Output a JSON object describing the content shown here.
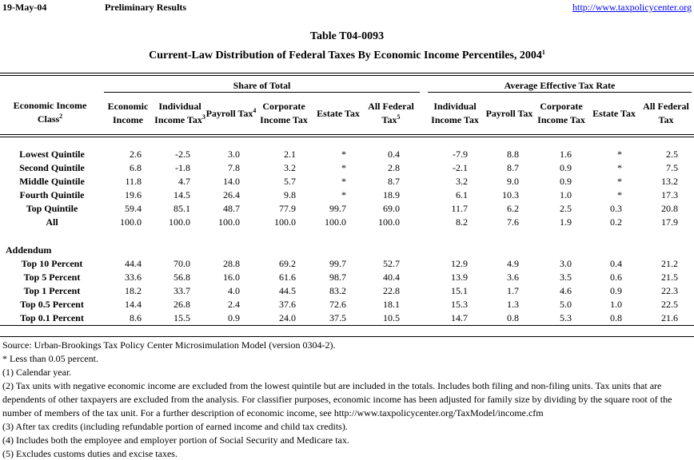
{
  "header": {
    "date": "19-May-04",
    "status": "Preliminary Results",
    "link": "http://www.taxpolicycenter.org"
  },
  "title": {
    "table_id": "Table T04-0093",
    "subtitle": "Current-Law Distribution of Federal Taxes By Economic Income Percentiles, 2004",
    "subtitle_note": "1"
  },
  "table": {
    "stub_header": {
      "text": "Economic Income Class",
      "note": "2"
    },
    "groups": [
      {
        "label": "Share of Total",
        "columns": [
          {
            "text": "Economic Income"
          },
          {
            "text": "Individual Income Tax",
            "note": "3"
          },
          {
            "text": "Payroll Tax",
            "note": "4"
          },
          {
            "text": "Corporate Income Tax"
          },
          {
            "text": "Estate Tax"
          },
          {
            "text": "All Federal Tax",
            "note": "5"
          }
        ]
      },
      {
        "label": "Average Effective Tax Rate",
        "columns": [
          {
            "text": "Individual Income Tax"
          },
          {
            "text": "Payroll Tax"
          },
          {
            "text": "Corporate Income Tax"
          },
          {
            "text": "Estate Tax"
          },
          {
            "text": "All Federal Tax"
          }
        ]
      }
    ],
    "sections": [
      {
        "rows": [
          {
            "label": "Lowest Quintile",
            "values": [
              "2.6",
              "-2.5",
              "3.0",
              "2.1",
              "*",
              "0.4",
              "-7.9",
              "8.8",
              "1.6",
              "*",
              "2.5"
            ]
          },
          {
            "label": "Second Quintile",
            "values": [
              "6.8",
              "-1.8",
              "7.8",
              "3.2",
              "*",
              "2.8",
              "-2.1",
              "8.7",
              "0.9",
              "*",
              "7.5"
            ]
          },
          {
            "label": "Middle Quintile",
            "values": [
              "11.8",
              "4.7",
              "14.0",
              "5.7",
              "*",
              "8.7",
              "3.2",
              "9.0",
              "0.9",
              "*",
              "13.2"
            ]
          },
          {
            "label": "Fourth Quintile",
            "values": [
              "19.6",
              "14.5",
              "26.4",
              "9.8",
              "*",
              "18.9",
              "6.1",
              "10.3",
              "1.0",
              "*",
              "17.3"
            ]
          },
          {
            "label": "Top Quintile",
            "values": [
              "59.4",
              "85.1",
              "48.7",
              "77.9",
              "99.7",
              "69.0",
              "11.7",
              "6.2",
              "2.5",
              "0.3",
              "20.8"
            ]
          },
          {
            "label": "All",
            "values": [
              "100.0",
              "100.0",
              "100.0",
              "100.0",
              "100.0",
              "100.0",
              "8.2",
              "7.6",
              "1.9",
              "0.2",
              "17.9"
            ]
          }
        ]
      },
      {
        "title": "Addendum",
        "rows": [
          {
            "label": "Top 10 Percent",
            "values": [
              "44.4",
              "70.0",
              "28.8",
              "69.2",
              "99.7",
              "52.7",
              "12.9",
              "4.9",
              "3.0",
              "0.4",
              "21.2"
            ]
          },
          {
            "label": "Top 5 Percent",
            "values": [
              "33.6",
              "56.8",
              "16.0",
              "61.6",
              "98.7",
              "40.4",
              "13.9",
              "3.6",
              "3.5",
              "0.6",
              "21.5"
            ]
          },
          {
            "label": "Top 1 Percent",
            "values": [
              "18.2",
              "33.7",
              "4.0",
              "44.5",
              "83.2",
              "22.8",
              "15.1",
              "1.7",
              "4.6",
              "0.9",
              "22.3"
            ]
          },
          {
            "label": "Top 0.5 Percent",
            "values": [
              "14.4",
              "26.8",
              "2.4",
              "37.6",
              "72.6",
              "18.1",
              "15.3",
              "1.3",
              "5.0",
              "1.0",
              "22.5"
            ]
          },
          {
            "label": "Top 0.1 Percent",
            "values": [
              "8.6",
              "15.5",
              "0.9",
              "24.0",
              "37.5",
              "10.5",
              "14.7",
              "0.8",
              "5.3",
              "0.8",
              "21.6"
            ]
          }
        ]
      }
    ]
  },
  "footnotes": [
    "Source: Urban-Brookings Tax Policy Center Microsimulation Model (version 0304-2).",
    "* Less than 0.05 percent.",
    "(1) Calendar year.",
    "(2) Tax units with negative economic income are excluded from the lowest quintile but are included in the totals. Includes both filing and non-filing units. Tax units that are dependents of other taxpayers are excluded from the analysis. For classifier purposes, economic income has been adjusted for family size by dividing by the square root of the number of members of the tax unit.  For a further description of economic income, see http://www.taxpolicycenter.org/TaxModel/income.cfm",
    "(3) After tax credits (including refundable portion of earned income and child tax credits).",
    "(4) Includes both the employee and employer portion of Social Security and Medicare tax.",
    "(5) Excludes customs duties and excise taxes."
  ]
}
